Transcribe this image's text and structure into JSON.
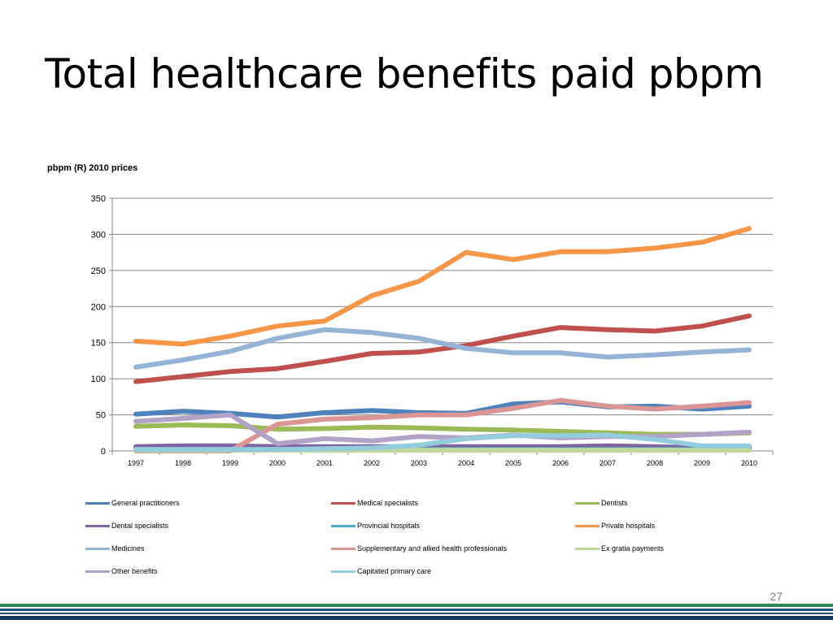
{
  "slide": {
    "title": "Total healthcare benefits paid pbpm",
    "page_number": "27"
  },
  "chart_data": {
    "type": "line",
    "title": "",
    "ylabel": "pbpm (R) 2010 prices",
    "xlabel": "",
    "x": [
      "1997",
      "1998",
      "1999",
      "2000",
      "2001",
      "2002",
      "2003",
      "2004",
      "2005",
      "2006",
      "2007",
      "2008",
      "2009",
      "2010"
    ],
    "ylim": [
      0,
      350
    ],
    "yticks": [
      0,
      50,
      100,
      150,
      200,
      250,
      300,
      350
    ],
    "grid": "horizontal",
    "legend_position": "bottom",
    "series": [
      {
        "name": "General practitioners",
        "color": "#4F81BD",
        "values": [
          51,
          55,
          52,
          47,
          53,
          56,
          53,
          52,
          65,
          68,
          61,
          62,
          58,
          62
        ]
      },
      {
        "name": "Medical specialists",
        "color": "#C0504D",
        "values": [
          96,
          103,
          110,
          114,
          124,
          135,
          137,
          146,
          159,
          171,
          168,
          166,
          173,
          187
        ]
      },
      {
        "name": "Dentists",
        "color": "#9BBB59",
        "values": [
          34,
          36,
          35,
          30,
          31,
          33,
          32,
          30,
          29,
          27,
          25,
          23,
          23,
          25
        ]
      },
      {
        "name": "Dental specialists",
        "color": "#8064A2",
        "values": [
          6,
          7,
          7,
          6,
          6,
          6,
          6,
          6,
          6,
          6,
          7,
          6,
          4,
          4
        ]
      },
      {
        "name": "Provincial hospitals",
        "color": "#4BACC6",
        "values": [
          2,
          2,
          2,
          2,
          2,
          2,
          2,
          2,
          2,
          2,
          2,
          2,
          2,
          2
        ]
      },
      {
        "name": "Private hospitals",
        "color": "#F79646",
        "values": [
          152,
          148,
          159,
          173,
          180,
          215,
          235,
          275,
          265,
          276,
          276,
          281,
          289,
          308
        ]
      },
      {
        "name": "Medicines",
        "color": "#95B3D7",
        "values": [
          116,
          126,
          138,
          156,
          168,
          164,
          156,
          142,
          136,
          136,
          130,
          133,
          137,
          140
        ]
      },
      {
        "name": "Supplementary and allied health professionals",
        "color": "#D99694",
        "values": [
          0,
          0,
          0,
          37,
          44,
          46,
          50,
          50,
          59,
          70,
          62,
          58,
          62,
          67
        ]
      },
      {
        "name": "Ex gratia payments",
        "color": "#C3D69B",
        "values": [
          1,
          1,
          1,
          1,
          1,
          1,
          1,
          1,
          1,
          1,
          1,
          1,
          1,
          1
        ]
      },
      {
        "name": "Other benefits",
        "color": "#B3A2C7",
        "values": [
          41,
          45,
          50,
          10,
          17,
          14,
          20,
          18,
          22,
          18,
          20,
          20,
          23,
          26
        ]
      },
      {
        "name": "Capitated primary care",
        "color": "#93CDDD",
        "values": [
          2,
          2,
          2,
          2,
          3,
          4,
          8,
          17,
          21,
          21,
          22,
          16,
          7,
          7
        ]
      }
    ]
  }
}
